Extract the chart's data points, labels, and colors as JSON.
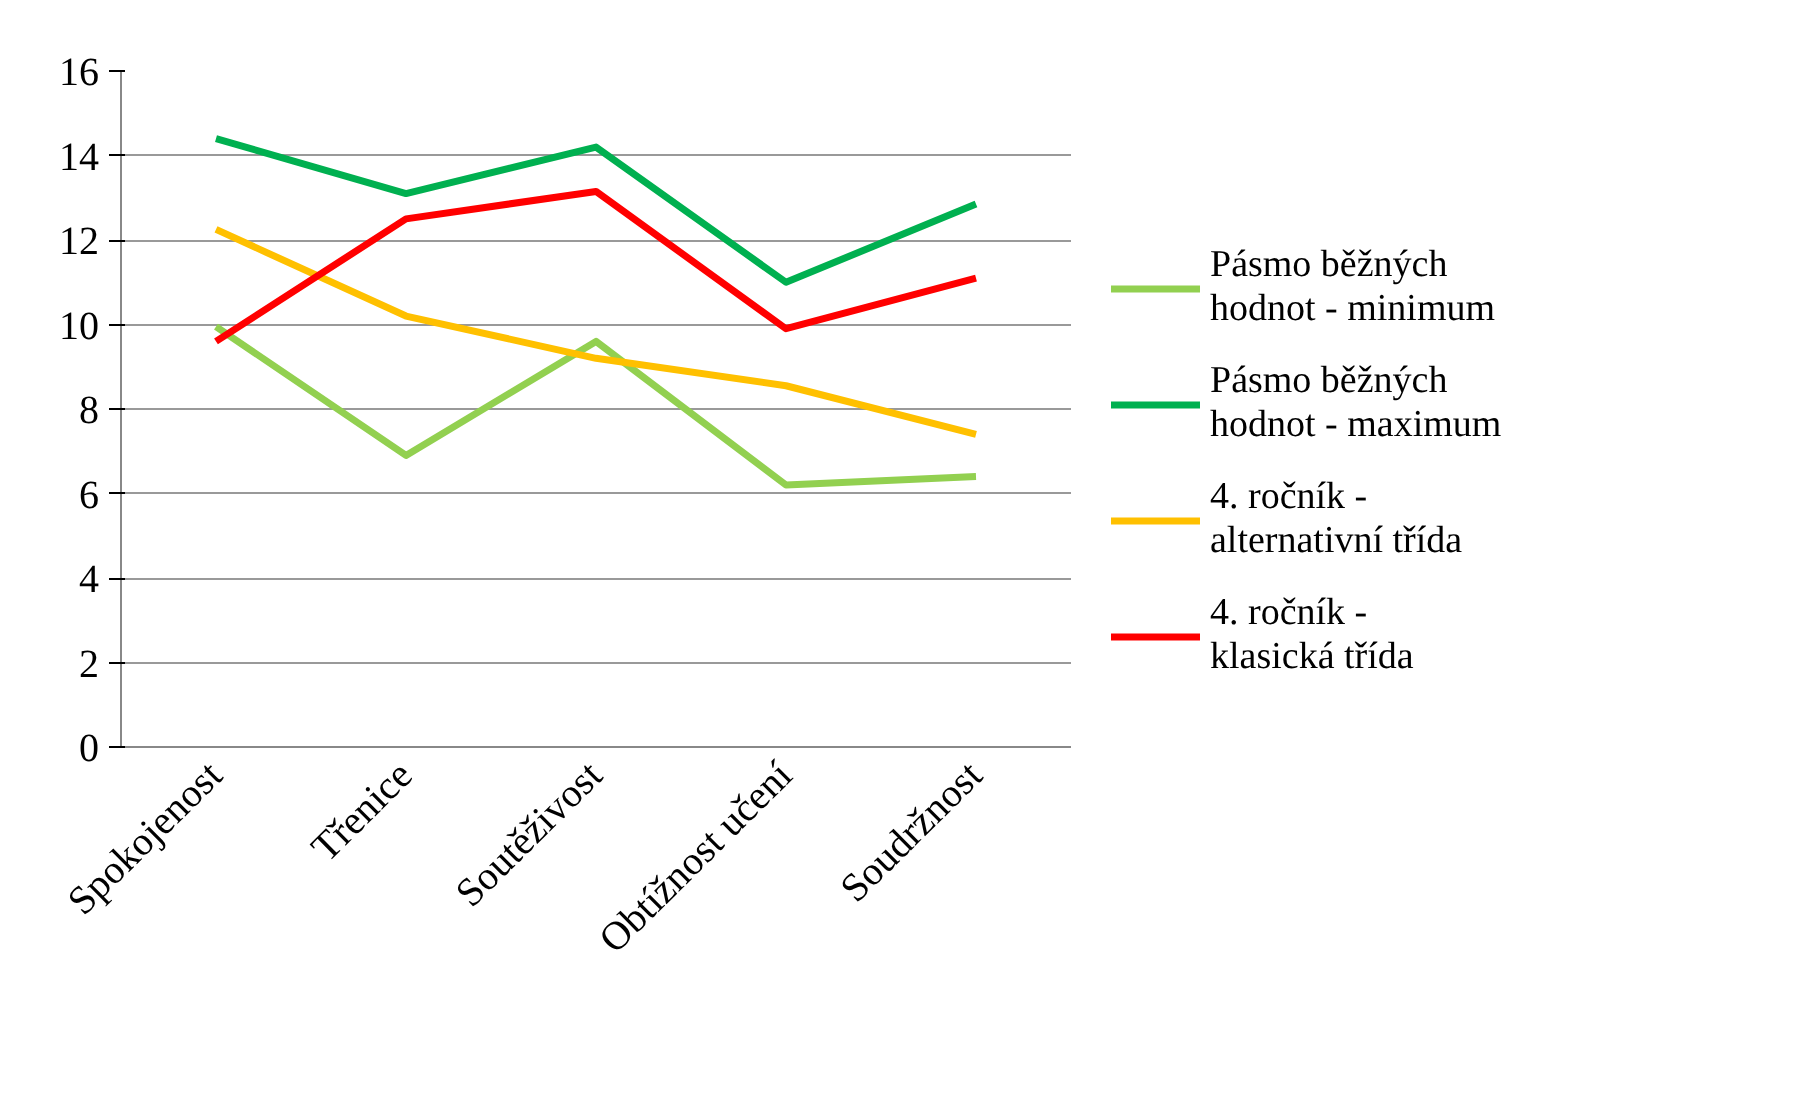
{
  "chart_data": {
    "type": "line",
    "categories": [
      "Spokojenost",
      "Třenice",
      "Soutěživost",
      "Obtížnost učení",
      "Soudržnost"
    ],
    "series": [
      {
        "name": "Pásmo běžných hodnot - minimum",
        "color": "#92d050",
        "values": [
          9.95,
          6.9,
          9.6,
          6.2,
          6.4
        ]
      },
      {
        "name": "Pásmo běžných hodnot - maximum",
        "color": "#00b050",
        "values": [
          14.4,
          13.1,
          14.2,
          11.0,
          12.85
        ]
      },
      {
        "name": "4. ročník - alternativní třída",
        "color": "#ffc000",
        "values": [
          12.25,
          10.2,
          9.2,
          8.55,
          7.4
        ]
      },
      {
        "name": "4. ročník - klasická třída",
        "color": "#ff0000",
        "values": [
          9.6,
          12.5,
          13.15,
          9.9,
          11.1
        ]
      }
    ],
    "ylim": [
      0,
      16
    ],
    "yticks": [
      0,
      2,
      4,
      6,
      8,
      10,
      12,
      14,
      16
    ],
    "grid": "y",
    "legend": "right",
    "marker": "none",
    "line_style": "solid"
  }
}
